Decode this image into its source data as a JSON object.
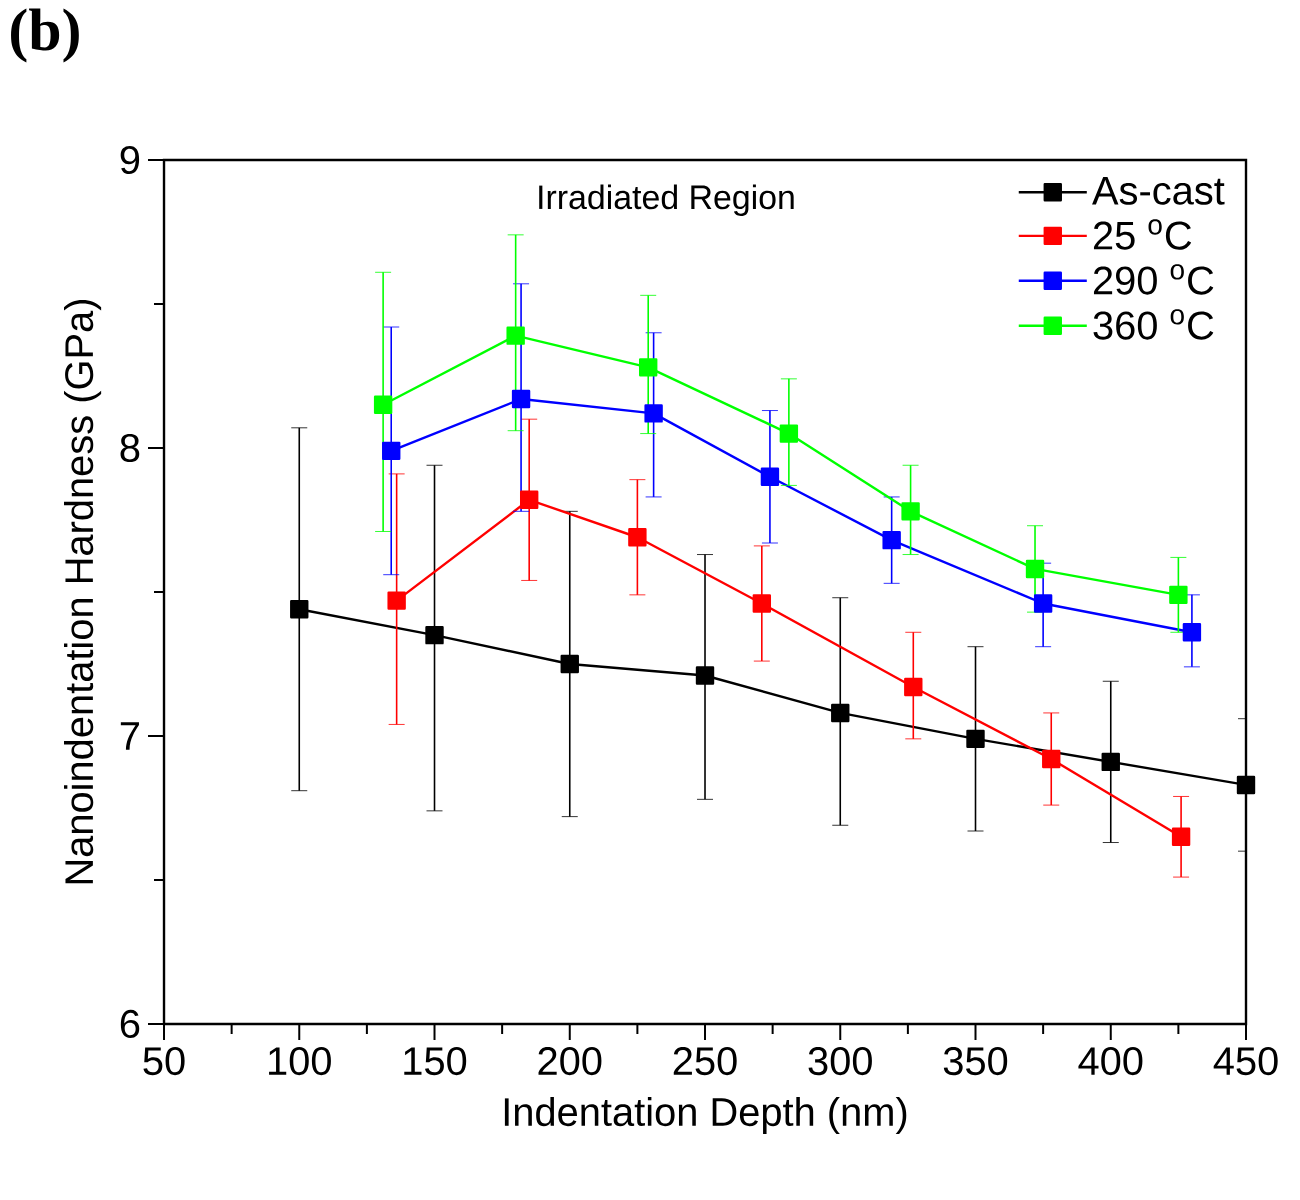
{
  "chart_data": {
    "type": "line",
    "xlabel": "Indentation Depth (nm)",
    "ylabel": "Nanoindentation Hardness (GPa)",
    "annotations": [
      "(b)",
      "Irradiated Region"
    ],
    "xlim": [
      50,
      450
    ],
    "xticks": [
      50,
      100,
      150,
      200,
      250,
      300,
      350,
      400,
      450
    ],
    "ylim": [
      6,
      9
    ],
    "yticks": [
      6,
      7,
      8,
      9
    ],
    "legend": "top right",
    "marker": "square",
    "grid": false,
    "series": [
      {
        "name": "As-cast",
        "color": "#000000",
        "x": [
          100,
          150,
          200,
          250,
          300,
          350,
          400,
          450
        ],
        "values": [
          7.44,
          7.35,
          7.25,
          7.21,
          7.08,
          6.99,
          6.91,
          6.83
        ],
        "errors": [
          [
            6.81,
            8.07
          ],
          [
            6.74,
            7.94
          ],
          [
            6.72,
            7.78
          ],
          [
            6.78,
            7.63
          ],
          [
            6.69,
            7.48
          ],
          [
            6.67,
            7.31
          ],
          [
            6.63,
            7.19
          ],
          [
            6.6,
            7.06
          ]
        ]
      },
      {
        "name": "25 $^{o}$C",
        "color": "#ff0000",
        "x": [
          136,
          185,
          225,
          271,
          327,
          378,
          426
        ],
        "values": [
          7.47,
          7.82,
          7.69,
          7.46,
          7.17,
          6.92,
          6.65
        ],
        "errors": [
          [
            7.04,
            7.91
          ],
          [
            7.54,
            8.1
          ],
          [
            7.49,
            7.89
          ],
          [
            7.26,
            7.66
          ],
          [
            6.99,
            7.36
          ],
          [
            6.76,
            7.08
          ],
          [
            6.51,
            6.79
          ]
        ]
      },
      {
        "name": "290 $^{o}$C",
        "color": "#0000ff",
        "x": [
          134,
          182,
          231,
          274,
          319,
          375,
          430
        ],
        "values": [
          7.99,
          8.17,
          8.12,
          7.9,
          7.68,
          7.46,
          7.36
        ],
        "errors": [
          [
            7.56,
            8.42
          ],
          [
            7.78,
            8.57
          ],
          [
            7.83,
            8.4
          ],
          [
            7.67,
            8.13
          ],
          [
            7.53,
            7.83
          ],
          [
            7.31,
            7.6
          ],
          [
            7.24,
            7.49
          ]
        ]
      },
      {
        "name": "360 $^{o}$C",
        "color": "#00ff00",
        "x": [
          131,
          180,
          229,
          281,
          326,
          372,
          425
        ],
        "values": [
          8.15,
          8.39,
          8.28,
          8.05,
          7.78,
          7.58,
          7.49
        ],
        "errors": [
          [
            7.71,
            8.61
          ],
          [
            8.06,
            8.74
          ],
          [
            8.05,
            8.53
          ],
          [
            7.87,
            8.24
          ],
          [
            7.63,
            7.94
          ],
          [
            7.43,
            7.73
          ],
          [
            7.36,
            7.62
          ]
        ]
      }
    ]
  }
}
